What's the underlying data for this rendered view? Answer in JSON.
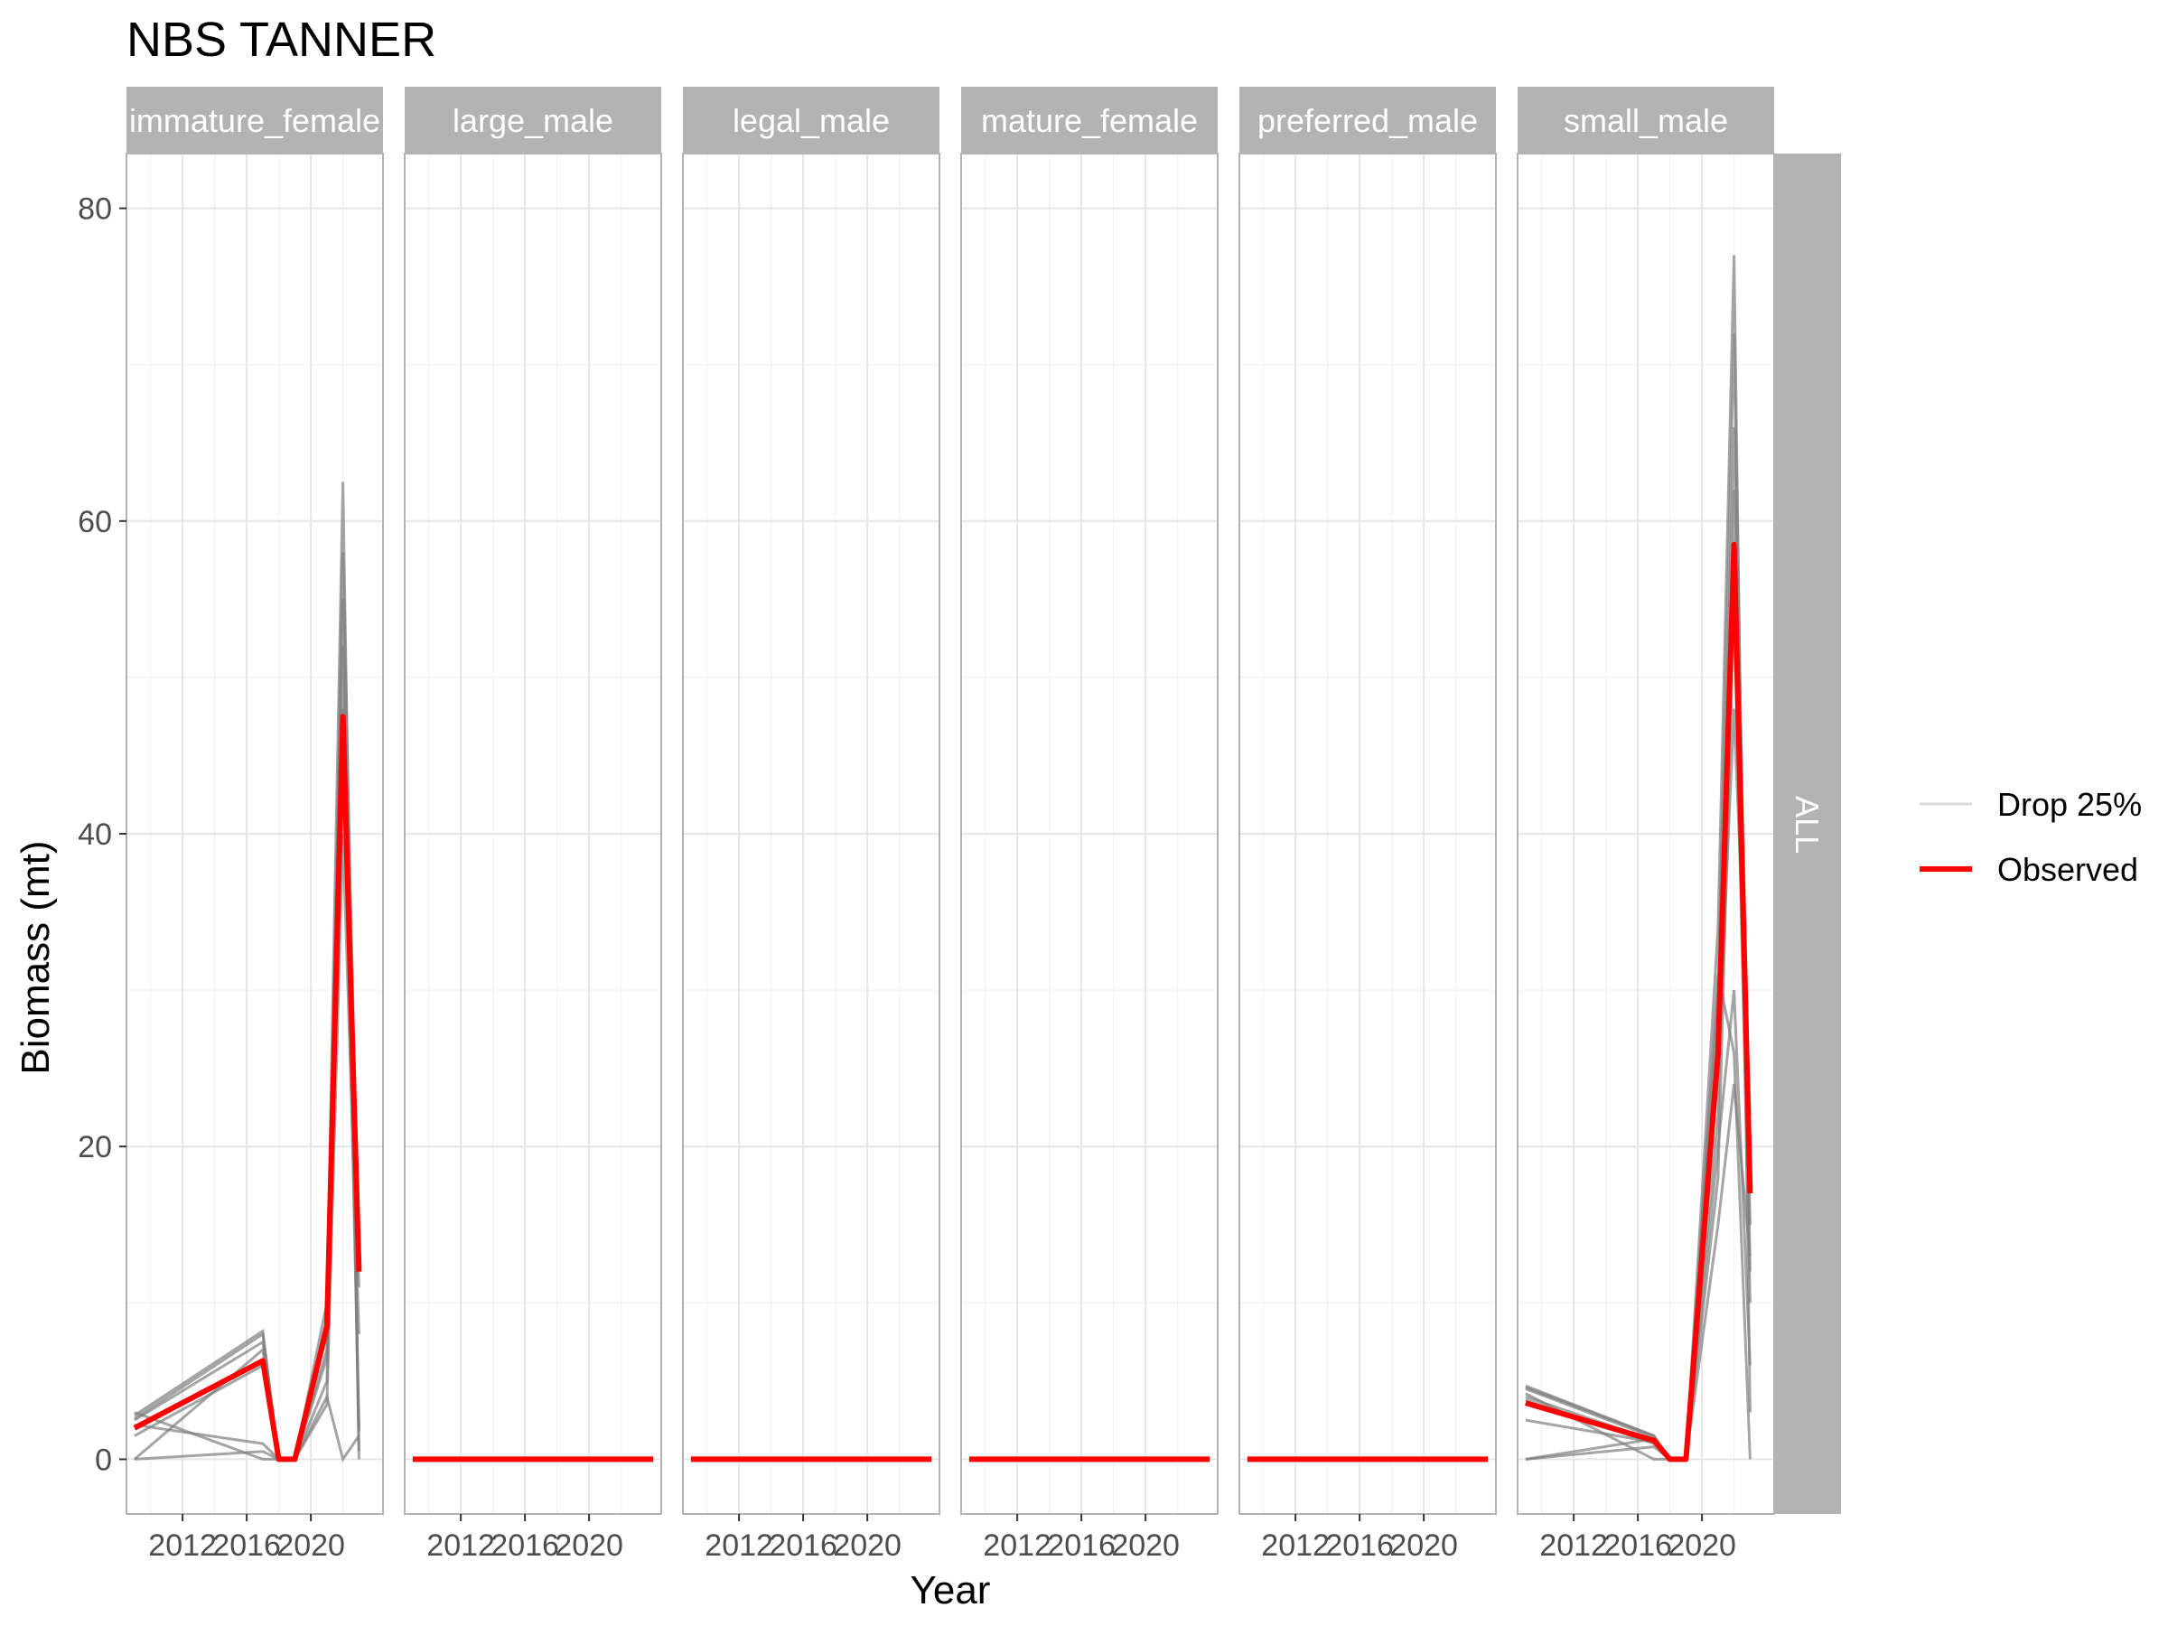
{
  "chart_data": {
    "type": "line",
    "title": "NBS TANNER",
    "xlabel": "Year",
    "ylabel": "Biomass (mt)",
    "ylim": [
      -3.5,
      83.5
    ],
    "xlim": [
      2008.5,
      2024.5
    ],
    "yticks": [
      0,
      20,
      40,
      60,
      80
    ],
    "xticks": [
      2012,
      2016,
      2020
    ],
    "row_strip": "ALL",
    "grid": true,
    "legend_position": "right",
    "legend": [
      {
        "label": "Drop 25%",
        "color": "#d9d9d9"
      },
      {
        "label": "Observed",
        "color": "#ff0000"
      }
    ],
    "colors": {
      "observed": "#ff0000",
      "drop": "#7f7f7f",
      "strip": "#b3b3b3",
      "grid": "#ebebeb",
      "panel_border": "#b3b3b3"
    },
    "panels": [
      {
        "name": "immature_female",
        "observed": {
          "x": [
            2009,
            2017,
            2018,
            2019,
            2021,
            2022,
            2023
          ],
          "y": [
            2.0,
            6.3,
            0.0,
            0.0,
            8.5,
            47.5,
            12.0
          ]
        },
        "drop": [
          {
            "x": [
              2009,
              2017,
              2018,
              2019,
              2021,
              2022,
              2023
            ],
            "y": [
              2.8,
              8.2,
              0.0,
              0.0,
              10.0,
              62.5,
              0.0
            ]
          },
          {
            "x": [
              2009,
              2017,
              2018,
              2019,
              2021,
              2022,
              2023
            ],
            "y": [
              2.5,
              7.5,
              0.0,
              0.0,
              8.0,
              58.0,
              12.0
            ]
          },
          {
            "x": [
              2009,
              2017,
              2018,
              2019,
              2021,
              2022,
              2023
            ],
            "y": [
              0.0,
              7.0,
              0.0,
              0.0,
              6.5,
              52.0,
              2.0
            ]
          },
          {
            "x": [
              2009,
              2017,
              2018,
              2019,
              2021,
              2022,
              2023
            ],
            "y": [
              2.2,
              1.0,
              0.0,
              0.0,
              5.0,
              44.0,
              11.0
            ]
          },
          {
            "x": [
              2009,
              2017,
              2018,
              2019,
              2021,
              2022,
              2023
            ],
            "y": [
              3.0,
              0.0,
              0.0,
              0.0,
              3.5,
              40.0,
              8.0
            ]
          },
          {
            "x": [
              2009,
              2017,
              2018,
              2019,
              2021,
              2022,
              2023
            ],
            "y": [
              0.0,
              0.5,
              0.0,
              0.0,
              9.0,
              55.0,
              0.5
            ]
          },
          {
            "x": [
              2009,
              2017,
              2018,
              2019,
              2021,
              2022,
              2023
            ],
            "y": [
              1.5,
              6.0,
              0.0,
              0.0,
              4.0,
              0.0,
              1.5
            ]
          },
          {
            "x": [
              2009,
              2017,
              2018,
              2019,
              2021,
              2022,
              2023
            ],
            "y": [
              2.6,
              8.0,
              0.0,
              0.0,
              7.0,
              48.0,
              1.8
            ]
          }
        ]
      },
      {
        "name": "large_male",
        "observed": {
          "x": [
            2009,
            2024
          ],
          "y": [
            0.0,
            0.0
          ]
        },
        "drop": [
          {
            "x": [
              2009,
              2024
            ],
            "y": [
              0.0,
              0.0
            ]
          }
        ]
      },
      {
        "name": "legal_male",
        "observed": {
          "x": [
            2009,
            2024
          ],
          "y": [
            0.0,
            0.0
          ]
        },
        "drop": [
          {
            "x": [
              2009,
              2024
            ],
            "y": [
              0.0,
              0.0
            ]
          }
        ]
      },
      {
        "name": "mature_female",
        "observed": {
          "x": [
            2009,
            2024
          ],
          "y": [
            0.0,
            0.0
          ]
        },
        "drop": [
          {
            "x": [
              2009,
              2024
            ],
            "y": [
              0.0,
              0.0
            ]
          }
        ]
      },
      {
        "name": "preferred_male",
        "observed": {
          "x": [
            2009,
            2024
          ],
          "y": [
            0.0,
            0.0
          ]
        },
        "drop": [
          {
            "x": [
              2009,
              2024
            ],
            "y": [
              0.0,
              0.0
            ]
          }
        ]
      },
      {
        "name": "small_male",
        "observed": {
          "x": [
            2009,
            2017,
            2018,
            2019,
            2021,
            2022,
            2023
          ],
          "y": [
            3.6,
            1.2,
            0.0,
            0.0,
            26.0,
            58.5,
            17.0
          ]
        },
        "drop": [
          {
            "x": [
              2009,
              2017,
              2018,
              2019,
              2021,
              2022,
              2023
            ],
            "y": [
              4.7,
              1.5,
              0.0,
              0.0,
              34.0,
              77.0,
              3.0
            ]
          },
          {
            "x": [
              2009,
              2017,
              2018,
              2019,
              2021,
              2022,
              2023
            ],
            "y": [
              4.5,
              1.4,
              0.0,
              0.0,
              30.0,
              72.0,
              12.0
            ]
          },
          {
            "x": [
              2009,
              2017,
              2018,
              2019,
              2021,
              2022,
              2023
            ],
            "y": [
              0.0,
              1.3,
              0.0,
              0.0,
              28.0,
              66.0,
              20.0
            ]
          },
          {
            "x": [
              2009,
              2017,
              2018,
              2019,
              2021,
              2022,
              2023
            ],
            "y": [
              4.2,
              0.0,
              0.0,
              0.0,
              22.0,
              62.0,
              15.0
            ]
          },
          {
            "x": [
              2009,
              2017,
              2018,
              2019,
              2021,
              2022,
              2023
            ],
            "y": [
              0.0,
              0.8,
              0.0,
              0.0,
              18.0,
              55.0,
              10.0
            ]
          },
          {
            "x": [
              2009,
              2017,
              2018,
              2019,
              2021,
              2022,
              2023
            ],
            "y": [
              3.8,
              1.0,
              0.0,
              0.0,
              25.0,
              48.0,
              22.0
            ]
          },
          {
            "x": [
              2009,
              2017,
              2018,
              2019,
              2021,
              2022,
              2023
            ],
            "y": [
              4.0,
              1.2,
              0.0,
              0.0,
              31.0,
              26.0,
              0.0
            ]
          },
          {
            "x": [
              2009,
              2017,
              2018,
              2019,
              2021,
              2022,
              2023
            ],
            "y": [
              2.5,
              1.1,
              0.0,
              0.0,
              20.0,
              30.0,
              6.0
            ]
          },
          {
            "x": [
              2009,
              2017,
              2018,
              2019,
              2021,
              2022,
              2023
            ],
            "y": [
              4.6,
              1.5,
              0.0,
              0.0,
              15.0,
              24.0,
              13.0
            ]
          }
        ]
      }
    ]
  }
}
